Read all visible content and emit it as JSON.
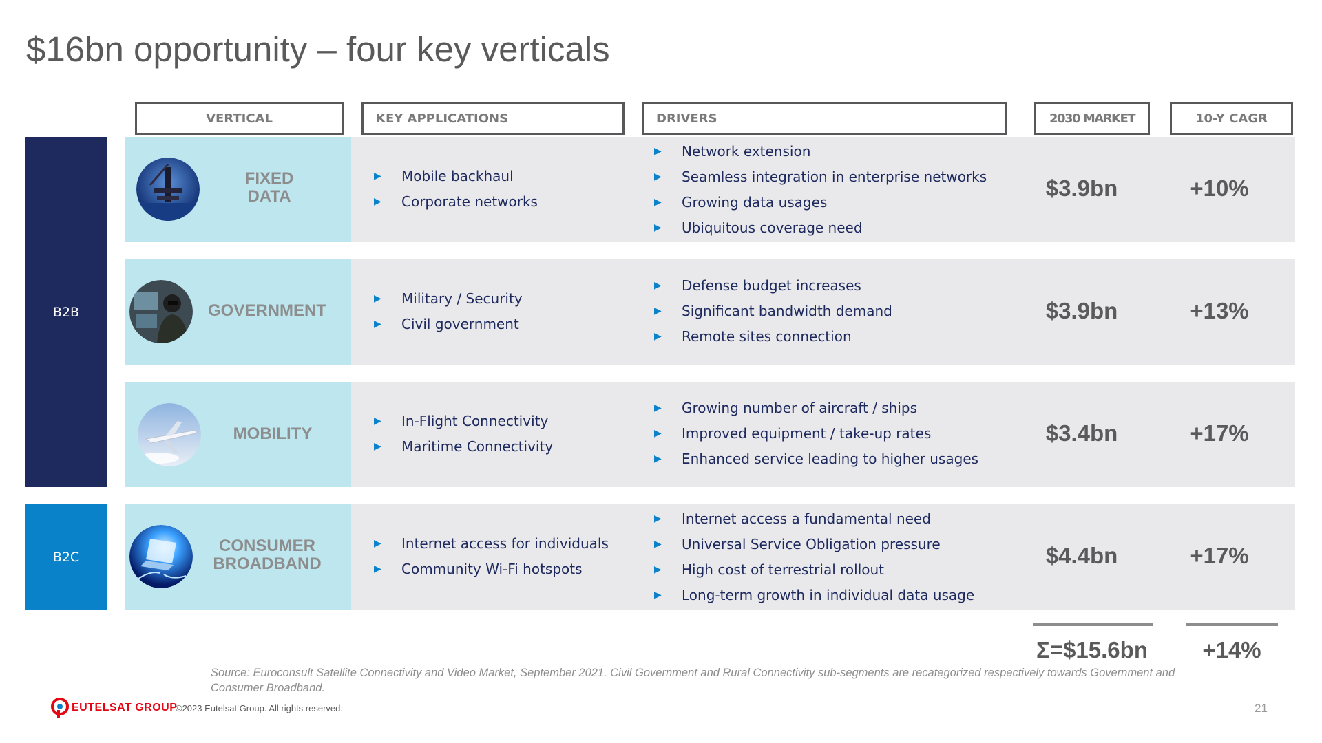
{
  "title": "$16bn opportunity – four key verticals",
  "headers": {
    "vertical": "VERTICAL",
    "applications": "KEY APPLICATIONS",
    "drivers": "DRIVERS",
    "market": "2030 MARKET",
    "cagr": "10-Y CAGR"
  },
  "segments": {
    "b2b": "B2B",
    "b2c": "B2C"
  },
  "rows": [
    {
      "vertical": "FIXED\nDATA",
      "icon": "offshore-rig-icon",
      "applications": [
        "Mobile backhaul",
        "Corporate networks"
      ],
      "drivers": [
        "Network extension",
        "Seamless integration in enterprise networks",
        "Growing data usages",
        "Ubiquitous coverage need"
      ],
      "market": "$3.9bn",
      "cagr": "+10%"
    },
    {
      "vertical": "GOVERNMENT",
      "icon": "soldier-operator-icon",
      "applications": [
        "Military / Security",
        "Civil government"
      ],
      "drivers": [
        "Defense budget increases",
        "Significant bandwidth demand",
        "Remote sites connection"
      ],
      "market": "$3.9bn",
      "cagr": "+13%"
    },
    {
      "vertical": "MOBILITY",
      "icon": "airplane-icon",
      "applications": [
        "In-Flight Connectivity",
        "Maritime Connectivity"
      ],
      "drivers": [
        "Growing number of aircraft / ships",
        "Improved equipment / take-up rates",
        "Enhanced service leading to higher usages"
      ],
      "market": "$3.4bn",
      "cagr": "+17%"
    },
    {
      "vertical": "CONSUMER\nBROADBAND",
      "icon": "laptop-light-icon",
      "applications": [
        "Internet access for individuals",
        "Community Wi-Fi hotspots"
      ],
      "drivers": [
        "Internet access a fundamental need",
        "Universal Service Obligation pressure",
        "High cost of terrestrial rollout",
        "Long-term growth in individual data usage"
      ],
      "market": "$4.4bn",
      "cagr": "+17%"
    }
  ],
  "totals": {
    "market": "Σ=$15.6bn",
    "cagr": "+14%"
  },
  "source": "Source: Euroconsult Satellite Connectivity and Video Market, September 2021. Civil Government and Rural Connectivity sub-segments are recategorized respectively towards Government and Consumer Broadband.",
  "footer": {
    "logo": "EUTELSAT GROUP",
    "copyright": "©2023 Eutelsat Group. All rights reserved.",
    "page": "21"
  },
  "colors": {
    "navy": "#1e2a5e",
    "blue": "#0a82c9",
    "lightblue": "#bde6ee",
    "grey": "#e9e9eb",
    "logo_red": "#e30613"
  }
}
